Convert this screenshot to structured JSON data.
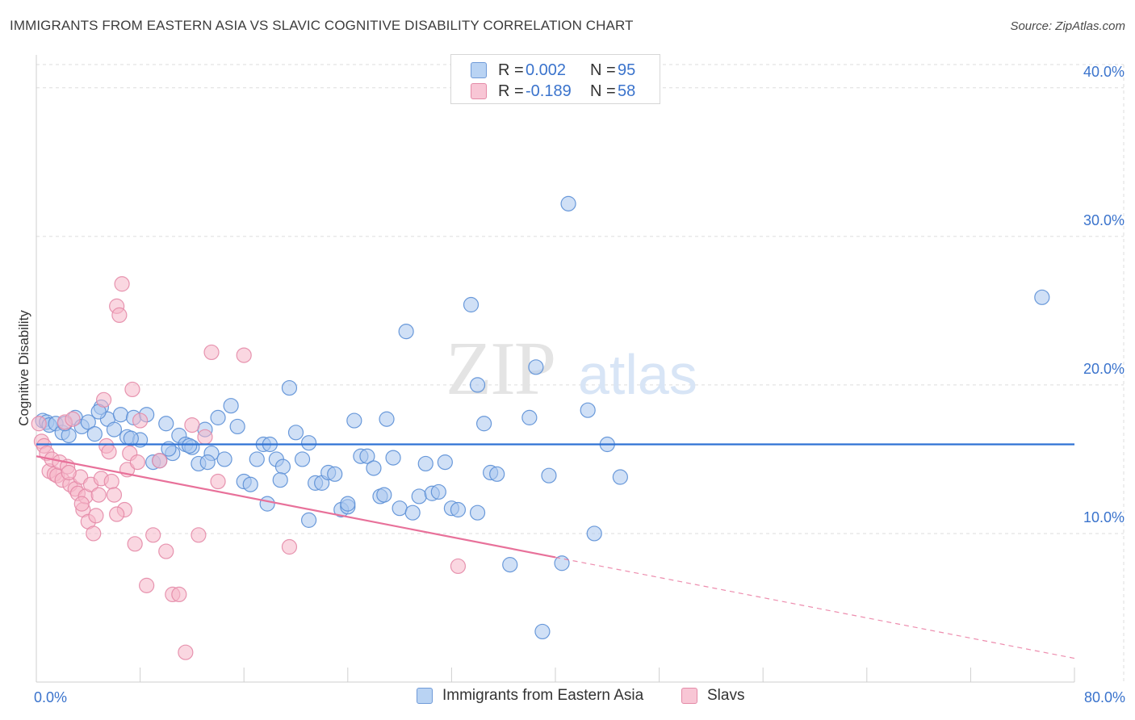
{
  "title": "IMMIGRANTS FROM EASTERN ASIA VS SLAVIC COGNITIVE DISABILITY CORRELATION CHART",
  "source": "Source: ZipAtlas.com",
  "watermark": {
    "zip": "ZIP",
    "atlas": "atlas"
  },
  "colors": {
    "blue_fill": "#a9c7ee",
    "blue_stroke": "#5b8fd6",
    "blue_line": "#2f72d4",
    "pink_fill": "#f5b7c9",
    "pink_stroke": "#e48aa7",
    "pink_line": "#e8719a",
    "value_text": "#3a73cc",
    "grid": "#dddddd"
  },
  "legend": {
    "rows": [
      {
        "r_label": "R =",
        "r_value": "0.002",
        "n_label": "N =",
        "n_value": "95"
      },
      {
        "r_label": "R =",
        "r_value": "-0.189",
        "n_label": "N =",
        "n_value": "58"
      }
    ]
  },
  "bottom_legend": {
    "items": [
      {
        "label": "Immigrants from Eastern Asia"
      },
      {
        "label": "Slavs"
      }
    ]
  },
  "chart_data": {
    "type": "scatter",
    "title": "IMMIGRANTS FROM EASTERN ASIA VS SLAVIC COGNITIVE DISABILITY CORRELATION CHART",
    "xlabel": "",
    "ylabel": "Cognitive Disability",
    "xlim": [
      0,
      80
    ],
    "ylim": [
      0,
      42
    ],
    "x_ticks": [
      0,
      8,
      16,
      24,
      32,
      40,
      48,
      56,
      64,
      72,
      80
    ],
    "x_tick_labels": [
      {
        "value": 0,
        "label": "0.0%"
      },
      {
        "value": 80,
        "label": "80.0%"
      }
    ],
    "y_ticks": [
      {
        "value": 10,
        "label": "10.0%"
      },
      {
        "value": 20,
        "label": "20.0%"
      },
      {
        "value": 30,
        "label": "30.0%"
      },
      {
        "value": 40,
        "label": "40.0%"
      }
    ],
    "grid": true,
    "legend_position": "top-center",
    "series": [
      {
        "name": "Immigrants from Eastern Asia",
        "color": "#5b8fd6",
        "trend": {
          "x": [
            0,
            80
          ],
          "y": [
            16.0,
            16.0
          ],
          "dashed_from": null
        },
        "points": [
          [
            0.5,
            17.6
          ],
          [
            0.8,
            17.5
          ],
          [
            1.0,
            17.3
          ],
          [
            1.5,
            17.4
          ],
          [
            2.0,
            16.8
          ],
          [
            2.5,
            16.6
          ],
          [
            3.0,
            17.8
          ],
          [
            3.5,
            17.2
          ],
          [
            4.0,
            17.5
          ],
          [
            4.5,
            16.7
          ],
          [
            5.0,
            18.5
          ],
          [
            5.5,
            17.7
          ],
          [
            6.0,
            17.0
          ],
          [
            6.5,
            18.0
          ],
          [
            7.0,
            16.5
          ],
          [
            7.5,
            17.8
          ],
          [
            8.0,
            16.3
          ],
          [
            8.5,
            18.0
          ],
          [
            9.0,
            14.8
          ],
          [
            9.5,
            14.9
          ],
          [
            10.0,
            17.4
          ],
          [
            10.5,
            15.4
          ],
          [
            11.0,
            16.6
          ],
          [
            11.5,
            16.0
          ],
          [
            12.0,
            15.8
          ],
          [
            12.5,
            14.7
          ],
          [
            13.0,
            17.0
          ],
          [
            13.5,
            15.4
          ],
          [
            14.0,
            17.8
          ],
          [
            14.5,
            15.0
          ],
          [
            15.0,
            18.6
          ],
          [
            15.5,
            17.2
          ],
          [
            16.0,
            13.5
          ],
          [
            16.5,
            13.3
          ],
          [
            17.0,
            15.0
          ],
          [
            17.5,
            16.0
          ],
          [
            18.0,
            16.0
          ],
          [
            18.5,
            15.0
          ],
          [
            19.0,
            14.5
          ],
          [
            19.5,
            19.8
          ],
          [
            20.0,
            16.8
          ],
          [
            20.5,
            15.0
          ],
          [
            21.0,
            16.1
          ],
          [
            21.5,
            13.4
          ],
          [
            22.0,
            13.4
          ],
          [
            22.5,
            14.1
          ],
          [
            23.0,
            14.0
          ],
          [
            23.5,
            11.6
          ],
          [
            24.0,
            11.8
          ],
          [
            24.5,
            17.6
          ],
          [
            25.0,
            15.2
          ],
          [
            25.5,
            15.2
          ],
          [
            26.0,
            14.4
          ],
          [
            26.5,
            12.5
          ],
          [
            27.0,
            17.7
          ],
          [
            27.5,
            15.1
          ],
          [
            28.0,
            11.7
          ],
          [
            28.5,
            23.6
          ],
          [
            29.0,
            11.4
          ],
          [
            29.5,
            12.5
          ],
          [
            30.0,
            14.7
          ],
          [
            30.5,
            12.7
          ],
          [
            31.0,
            12.8
          ],
          [
            31.5,
            14.8
          ],
          [
            32.0,
            11.7
          ],
          [
            32.5,
            11.6
          ],
          [
            33.5,
            25.4
          ],
          [
            34.0,
            20.0
          ],
          [
            34.5,
            17.4
          ],
          [
            35.0,
            14.1
          ],
          [
            35.5,
            14.0
          ],
          [
            36.5,
            7.9
          ],
          [
            38.0,
            17.8
          ],
          [
            38.5,
            21.2
          ],
          [
            39.0,
            3.4
          ],
          [
            39.5,
            13.9
          ],
          [
            40.5,
            8.0
          ],
          [
            41.0,
            32.2
          ],
          [
            42.5,
            18.3
          ],
          [
            43.0,
            10.0
          ],
          [
            44.0,
            16.0
          ],
          [
            45.0,
            13.8
          ],
          [
            77.5,
            25.9
          ],
          [
            2.2,
            17.4
          ],
          [
            13.2,
            14.8
          ],
          [
            17.8,
            12.0
          ],
          [
            4.8,
            18.2
          ],
          [
            10.2,
            15.7
          ],
          [
            21.0,
            10.9
          ],
          [
            26.8,
            12.6
          ],
          [
            7.3,
            16.4
          ],
          [
            11.8,
            15.9
          ],
          [
            18.8,
            13.6
          ],
          [
            24.0,
            12.0
          ],
          [
            34.0,
            11.4
          ]
        ]
      },
      {
        "name": "Slavs",
        "color": "#e48aa7",
        "trend": {
          "x": [
            0,
            40
          ],
          "y": [
            15.2,
            8.4
          ],
          "dashed_to": [
            80,
            1.6
          ]
        },
        "points": [
          [
            0.2,
            17.4
          ],
          [
            0.4,
            16.2
          ],
          [
            0.6,
            15.9
          ],
          [
            0.8,
            15.4
          ],
          [
            1.0,
            14.2
          ],
          [
            1.2,
            15.0
          ],
          [
            1.4,
            14.0
          ],
          [
            1.6,
            13.9
          ],
          [
            1.8,
            14.8
          ],
          [
            2.0,
            13.6
          ],
          [
            2.2,
            17.5
          ],
          [
            2.4,
            14.5
          ],
          [
            2.6,
            13.3
          ],
          [
            2.8,
            17.7
          ],
          [
            3.0,
            13.0
          ],
          [
            3.2,
            12.7
          ],
          [
            3.4,
            13.8
          ],
          [
            3.6,
            11.6
          ],
          [
            3.8,
            12.5
          ],
          [
            4.0,
            10.8
          ],
          [
            4.2,
            13.3
          ],
          [
            4.4,
            10.0
          ],
          [
            4.6,
            11.2
          ],
          [
            4.8,
            12.6
          ],
          [
            5.0,
            13.7
          ],
          [
            5.2,
            19.0
          ],
          [
            5.4,
            15.9
          ],
          [
            5.6,
            15.5
          ],
          [
            5.8,
            13.5
          ],
          [
            6.0,
            12.6
          ],
          [
            6.2,
            25.3
          ],
          [
            6.4,
            24.7
          ],
          [
            6.6,
            26.8
          ],
          [
            6.8,
            11.6
          ],
          [
            7.0,
            14.3
          ],
          [
            7.2,
            15.4
          ],
          [
            7.4,
            19.7
          ],
          [
            7.6,
            9.3
          ],
          [
            7.8,
            14.8
          ],
          [
            8.0,
            17.6
          ],
          [
            8.5,
            6.5
          ],
          [
            9.0,
            9.9
          ],
          [
            9.5,
            14.9
          ],
          [
            10.0,
            8.8
          ],
          [
            10.5,
            5.9
          ],
          [
            11.0,
            5.9
          ],
          [
            11.5,
            2.0
          ],
          [
            12.0,
            17.3
          ],
          [
            12.5,
            9.9
          ],
          [
            13.0,
            16.5
          ],
          [
            13.5,
            22.2
          ],
          [
            14.0,
            13.5
          ],
          [
            16.0,
            22.0
          ],
          [
            19.5,
            9.1
          ],
          [
            32.5,
            7.8
          ],
          [
            2.5,
            14.1
          ],
          [
            3.5,
            12.0
          ],
          [
            6.2,
            11.3
          ]
        ]
      }
    ]
  }
}
